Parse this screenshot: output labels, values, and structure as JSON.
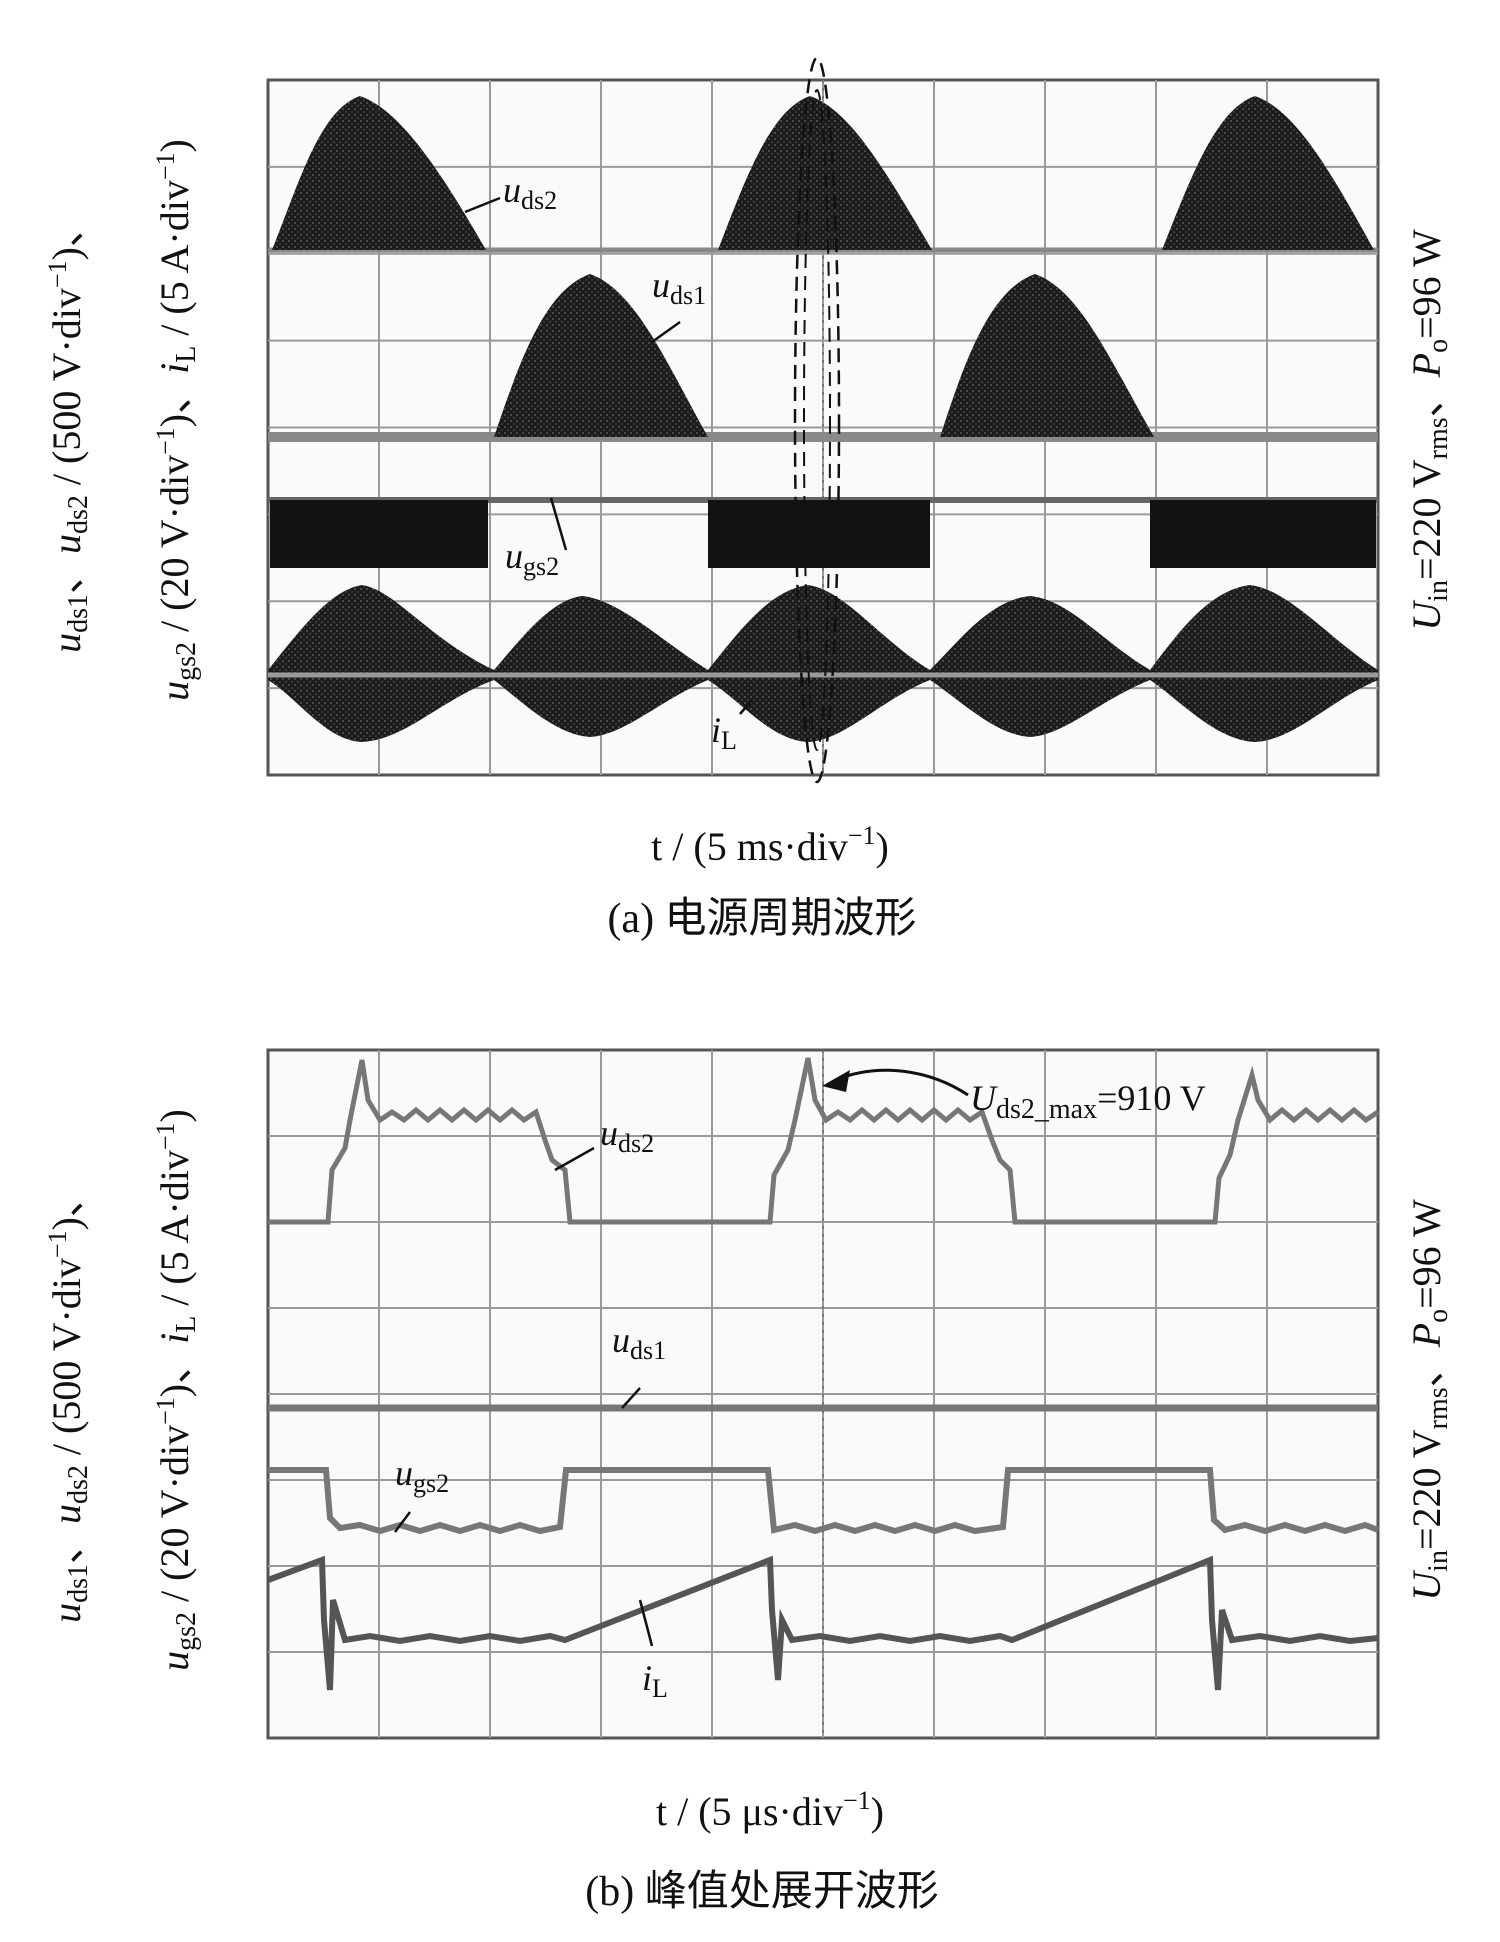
{
  "chart_data": [
    {
      "type": "line",
      "panel": "a",
      "caption": "(a)  电源周期波形",
      "xlabel": {
        "var": "t",
        "text": " / (5 ms·div",
        "exp": "−1",
        "close": ")"
      },
      "ylabel_lines": [
        "u_ds1、u_ds2 / (500 V·div^−1)、",
        "u_gs2 / (20 V·div^−1)、i_L / (5 A·div^−1)"
      ],
      "condition": "U_in=220 V_rms、P_o=96 W",
      "grid": true,
      "x_divisions": 10,
      "y_divisions": 8,
      "x_range_ms": [
        0,
        50
      ],
      "series": [
        {
          "name": "u_ds2",
          "label_main": "u",
          "label_sub": "ds2",
          "humps_ms": [
            [
              0,
              10
            ],
            [
              20,
              30
            ],
            [
              40,
              50
            ]
          ]
        },
        {
          "name": "u_ds1",
          "label_main": "u",
          "label_sub": "ds1",
          "humps_ms": [
            [
              10,
              20
            ],
            [
              30,
              40
            ]
          ]
        },
        {
          "name": "u_gs2",
          "label_main": "u",
          "label_sub": "gs2",
          "on_intervals_ms": [
            [
              0,
              10
            ],
            [
              20,
              30
            ],
            [
              40,
              50
            ]
          ]
        },
        {
          "name": "i_L",
          "label_main": "i",
          "label_sub": "L",
          "period_ms": 10
        }
      ]
    },
    {
      "type": "line",
      "panel": "b",
      "caption": "(b)  峰值处展开波形",
      "xlabel": {
        "var": "t",
        "text": " / (5 μs·div",
        "exp": "−1",
        "close": ")"
      },
      "ylabel_lines": [
        "u_ds1、u_ds2 / (500 V·div^−1)、",
        "u_gs2 / (20 V·div^−1)、i_L / (5 A·div^−1)"
      ],
      "condition": "U_in=220 V_rms、P_o=96 W",
      "grid": true,
      "x_divisions": 10,
      "y_divisions": 8,
      "x_range_us": [
        0,
        50
      ],
      "annotation": {
        "main": "U",
        "sub": "ds2_max",
        "value": "=910 V"
      },
      "series": [
        {
          "name": "u_ds2",
          "label_main": "u",
          "label_sub": "ds2"
        },
        {
          "name": "u_ds1",
          "label_main": "u",
          "label_sub": "ds1"
        },
        {
          "name": "u_gs2",
          "label_main": "u",
          "label_sub": "gs2"
        },
        {
          "name": "i_L",
          "label_main": "i",
          "label_sub": "L"
        }
      ]
    }
  ]
}
